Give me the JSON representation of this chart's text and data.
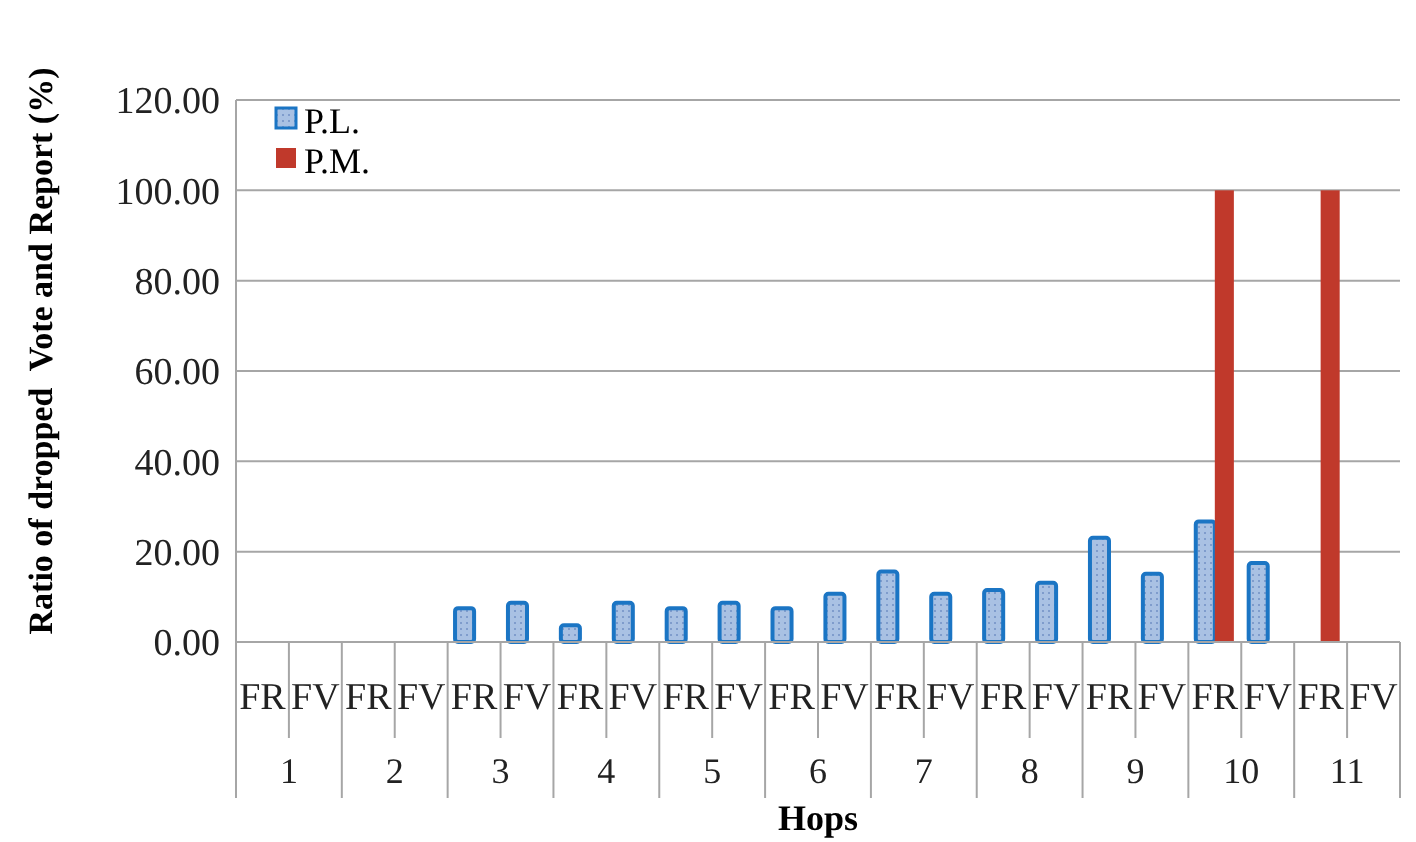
{
  "chart_data": {
    "type": "bar",
    "xlabel": "Hops",
    "ylabel": "Ratio of dropped  Vote and Report (%)",
    "categories": [
      "FR",
      "FV",
      "FR",
      "FV",
      "FR",
      "FV",
      "FR",
      "FV",
      "FR",
      "FV",
      "FR",
      "FV",
      "FR",
      "FV",
      "FR",
      "FV",
      "FR",
      "FV",
      "FR",
      "FV",
      "FR",
      "FV"
    ],
    "annotations": [
      "1",
      "2",
      "3",
      "4",
      "5",
      "6",
      "7",
      "8",
      "9",
      "10",
      "11"
    ],
    "series": [
      {
        "name": "P.L.",
        "color": "#1b75c4",
        "values": [
          0,
          0,
          0,
          0,
          7.5,
          8.7,
          3.7,
          8.7,
          7.5,
          8.7,
          7.5,
          10.7,
          15.6,
          10.7,
          11.5,
          13.1,
          23.1,
          15.1,
          26.7,
          17.5,
          0,
          0
        ]
      },
      {
        "name": "P.M.",
        "color": "#c0392b",
        "values": [
          0,
          0,
          0,
          0,
          0,
          0,
          0,
          0,
          0,
          0,
          0,
          0,
          0,
          0,
          0,
          0,
          0,
          0,
          100,
          0,
          100,
          0
        ]
      }
    ],
    "ylim": [
      0,
      120
    ],
    "yticks": [
      {
        "value": 0,
        "label": "0.00"
      },
      {
        "value": 20,
        "label": "20.00"
      },
      {
        "value": 40,
        "label": "40.00"
      },
      {
        "value": 60,
        "label": "60.00"
      },
      {
        "value": 80,
        "label": "80.00"
      },
      {
        "value": 100,
        "label": "100.00"
      },
      {
        "value": 120,
        "label": "120.00"
      }
    ],
    "grid": "y",
    "legend": "top left"
  }
}
